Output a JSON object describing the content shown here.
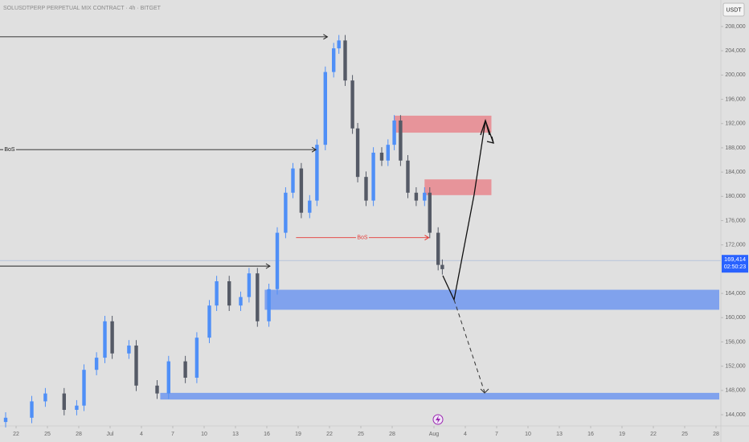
{
  "chart_data": {
    "type": "candlestick",
    "title": "SOLUSDTPERP PERPETUAL MIX CONTRACT · 4h · BITGET",
    "currency": "USDT",
    "up_color": "#4f8ff7",
    "down_color": "#555a66",
    "xlim": [
      -1.54,
      67.31
    ],
    "ylim": [
      142150,
      212370
    ],
    "xticks": [
      {
        "value": 0,
        "label": "22"
      },
      {
        "value": 3,
        "label": "25"
      },
      {
        "value": 6,
        "label": "28"
      },
      {
        "value": 9,
        "label": "Jul"
      },
      {
        "value": 12,
        "label": "4"
      },
      {
        "value": 15,
        "label": "7"
      },
      {
        "value": 18,
        "label": "10"
      },
      {
        "value": 21,
        "label": "13"
      },
      {
        "value": 24,
        "label": "16"
      },
      {
        "value": 27,
        "label": "19"
      },
      {
        "value": 30,
        "label": "22"
      },
      {
        "value": 33,
        "label": "25"
      },
      {
        "value": 36,
        "label": "28"
      },
      {
        "value": 40,
        "label": "Aug"
      },
      {
        "value": 43,
        "label": "4"
      },
      {
        "value": 46,
        "label": "7"
      },
      {
        "value": 49,
        "label": "10"
      },
      {
        "value": 52,
        "label": "13"
      },
      {
        "value": 55,
        "label": "16"
      },
      {
        "value": 58,
        "label": "19"
      },
      {
        "value": 61,
        "label": "22"
      },
      {
        "value": 64,
        "label": "25"
      },
      {
        "value": 67,
        "label": "28"
      }
    ],
    "yticks": [
      {
        "value": 208000,
        "label": "208,000"
      },
      {
        "value": 204000,
        "label": "204,000"
      },
      {
        "value": 200000,
        "label": "200,000"
      },
      {
        "value": 196000,
        "label": "196,000"
      },
      {
        "value": 192000,
        "label": "192,000"
      },
      {
        "value": 188000,
        "label": "188,000"
      },
      {
        "value": 184000,
        "label": "184,000"
      },
      {
        "value": 180000,
        "label": "180,000"
      },
      {
        "value": 176000,
        "label": "176,000"
      },
      {
        "value": 172000,
        "label": "172,000"
      },
      {
        "value": 164000,
        "label": "164,000"
      },
      {
        "value": 160000,
        "label": "160,000"
      },
      {
        "value": 156000,
        "label": "156,000"
      },
      {
        "value": 152000,
        "label": "152,000"
      },
      {
        "value": 148000,
        "label": "148,000"
      },
      {
        "value": 144000,
        "label": "144,000"
      }
    ],
    "candles": {
      "x": [
        -1.0,
        1.5,
        2.8,
        4.6,
        5.8,
        6.5,
        7.7,
        8.5,
        9.2,
        10.8,
        11.5,
        13.5,
        14.6,
        16.2,
        17.3,
        18.5,
        19.2,
        20.4,
        21.5,
        22.3,
        23.1,
        24.2,
        25.0,
        25.8,
        26.5,
        27.3,
        28.1,
        28.8,
        29.6,
        30.4,
        30.9,
        31.5,
        32.2,
        32.7,
        33.5,
        34.2,
        35.0,
        35.6,
        36.2,
        36.8,
        37.5,
        38.3,
        39.1,
        39.6,
        40.4,
        40.8
      ],
      "open": [
        142800,
        143500,
        146200,
        147500,
        144800,
        145500,
        151400,
        153400,
        159400,
        154100,
        155400,
        148800,
        147500,
        152800,
        150100,
        156700,
        162000,
        166000,
        162000,
        163400,
        167300,
        159400,
        164700,
        174000,
        180600,
        184600,
        177300,
        179300,
        188500,
        200500,
        204400,
        205700,
        199100,
        191200,
        183200,
        179300,
        187200,
        185900,
        188500,
        192500,
        185900,
        180600,
        179300,
        180600,
        174000,
        168700
      ],
      "high": [
        144400,
        147100,
        148400,
        148400,
        146400,
        152300,
        154300,
        160300,
        160300,
        156300,
        156300,
        149700,
        153700,
        153700,
        157600,
        162900,
        166900,
        166900,
        164300,
        168200,
        168200,
        165600,
        174900,
        181500,
        185500,
        185500,
        180200,
        189400,
        201400,
        205300,
        206600,
        206600,
        200000,
        192100,
        184100,
        188100,
        188100,
        189400,
        193400,
        193400,
        186800,
        181500,
        181500,
        181500,
        174900,
        169600
      ],
      "low": [
        141900,
        142600,
        145300,
        143900,
        143900,
        144600,
        150500,
        152500,
        153200,
        153200,
        147900,
        146600,
        146600,
        149200,
        149200,
        155800,
        161100,
        161100,
        161100,
        162500,
        158500,
        158500,
        163800,
        173100,
        179700,
        176400,
        176400,
        178400,
        187600,
        199600,
        203500,
        198200,
        190300,
        182300,
        178400,
        178400,
        185000,
        185000,
        187600,
        185000,
        179700,
        178400,
        178400,
        173100,
        167800,
        167100
      ],
      "close": [
        143500,
        146200,
        147500,
        144800,
        145500,
        151400,
        153400,
        159400,
        154100,
        155400,
        148800,
        147500,
        152800,
        150100,
        156700,
        162000,
        166000,
        162000,
        163400,
        167300,
        159400,
        164700,
        174000,
        180600,
        184600,
        177300,
        179300,
        188500,
        200500,
        204400,
        205700,
        199100,
        191200,
        183200,
        179300,
        187200,
        185900,
        188500,
        192500,
        185900,
        180600,
        179300,
        180600,
        174000,
        168700,
        168000
      ]
    },
    "levels": [
      {
        "price": 206300,
        "x_end": 29.8,
        "color": "#222222"
      },
      {
        "price": 187700,
        "x_end": 28.7,
        "color": "#222222",
        "label": "BoS"
      },
      {
        "price": 168500,
        "x_end": 24.3,
        "color": "#222222"
      },
      {
        "price": 173200,
        "x_start": 26.8,
        "x_end": 39.5,
        "color": "#e53935",
        "label": "BoS"
      }
    ],
    "zones": [
      {
        "top": 193300,
        "bottom": 190500,
        "x_start": 36.2,
        "x_end": 45.5,
        "color": "#e8868d"
      },
      {
        "top": 182800,
        "bottom": 180200,
        "x_start": 39.1,
        "x_end": 45.5,
        "color": "#e8868d"
      },
      {
        "top": 164600,
        "bottom": 161300,
        "x_start": 23.8,
        "x_end": 67.31,
        "color": "#6f96ee"
      },
      {
        "top": 147600,
        "bottom": 146500,
        "x_start": 13.8,
        "x_end": 67.31,
        "color": "#6f96ee"
      }
    ],
    "last_price": 169414,
    "last_price_label": "169,414",
    "countdown": "02:50:23"
  }
}
